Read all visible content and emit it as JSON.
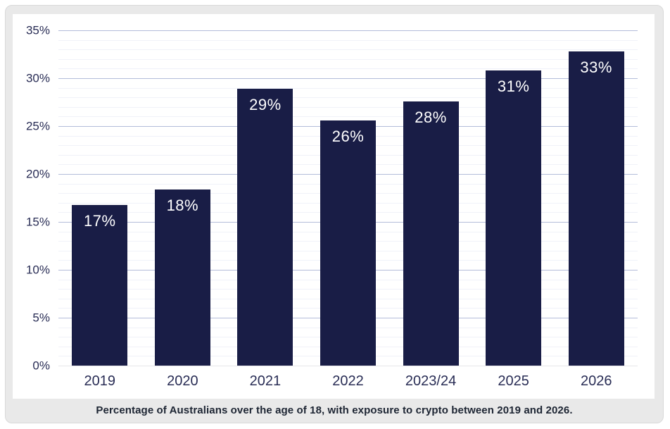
{
  "chart_data": {
    "type": "bar",
    "title": "",
    "xlabel": "",
    "ylabel": "",
    "categories": [
      "2019",
      "2020",
      "2021",
      "2022",
      "2023/24",
      "2025",
      "2026"
    ],
    "values": [
      17,
      18,
      29,
      26,
      28,
      31,
      33
    ],
    "bar_labels": [
      "17%",
      "18%",
      "29%",
      "26%",
      "28%",
      "31%",
      "33%"
    ],
    "display_heights_pct": [
      16.8,
      18.4,
      28.9,
      25.6,
      27.6,
      30.8,
      32.8
    ],
    "y_ticks": [
      "35%",
      "30%",
      "25%",
      "20%",
      "15%",
      "10%",
      "5%",
      "0%"
    ],
    "y_tick_values": [
      35,
      30,
      25,
      20,
      15,
      10,
      5,
      0
    ],
    "ylim": [
      0,
      35
    ],
    "major_grid_step": 5,
    "minor_grid_step": 1,
    "grid": true,
    "legend_position": "none",
    "caption": "Percentage of Australians over the age of 18, with exposure to crypto between 2019 and 2026.",
    "colors": {
      "bar": "#191d46",
      "bar_label": "#ffffff",
      "major_gridline": "#b3bcda",
      "minor_gridline": "#f0f2f9",
      "zero_line": "#e6e6e9",
      "axis_label": "#292d55",
      "caption_text": "#1d2533",
      "card_background": "#e9e9e9",
      "card_border": "#d9d9d9",
      "panel_background": "#ffffff"
    }
  }
}
